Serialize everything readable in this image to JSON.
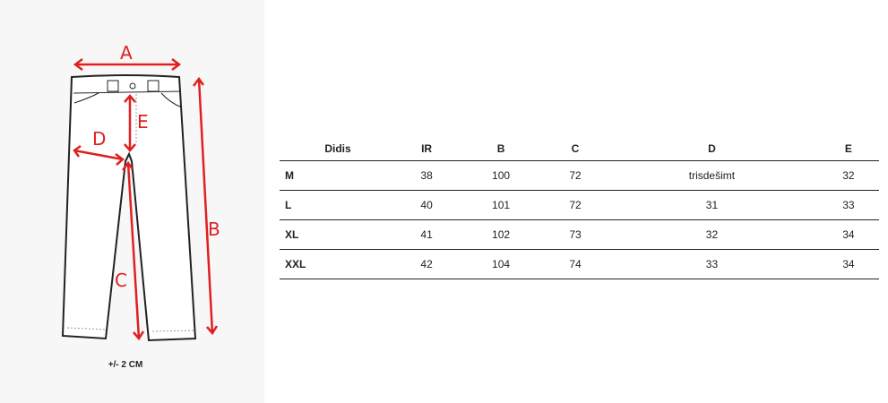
{
  "diagram": {
    "labels": {
      "a": "A",
      "b": "B",
      "c": "C",
      "d": "D",
      "e": "E"
    },
    "tolerance": "+/-  2 CM",
    "arrow_color": "#e02020"
  },
  "table": {
    "headers": [
      "Didis",
      "IR",
      "B",
      "C",
      "D",
      "E"
    ],
    "rows": [
      [
        "M",
        "38",
        "100",
        "72",
        "trisdešimt",
        "32"
      ],
      [
        "L",
        "40",
        "101",
        "72",
        "31",
        "33"
      ],
      [
        "XL",
        "41",
        "102",
        "73",
        "32",
        "34"
      ],
      [
        "XXL",
        "42",
        "104",
        "74",
        "33",
        "34"
      ]
    ]
  }
}
